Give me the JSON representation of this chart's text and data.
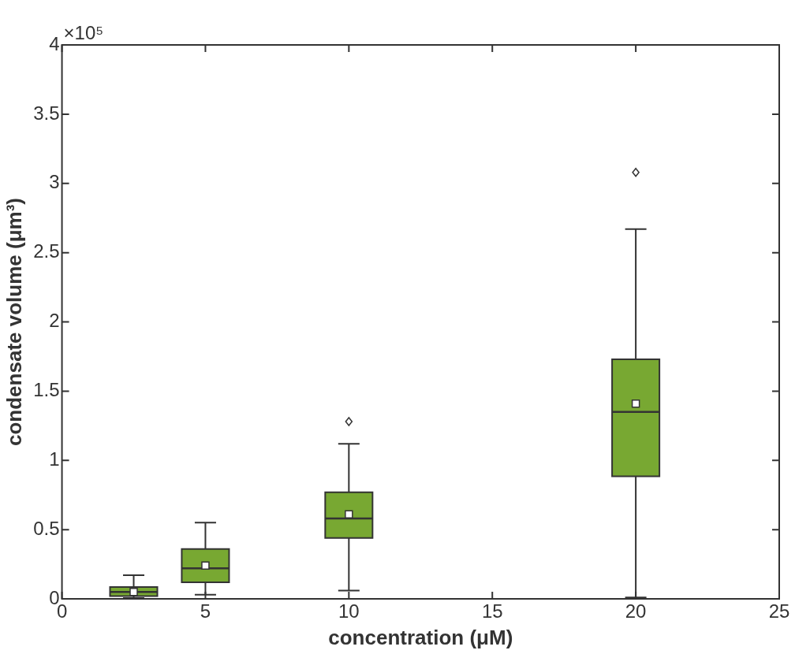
{
  "chart_data": {
    "type": "box",
    "xlabel": "concentration (μM)",
    "ylabel": "condensate volume (μm³)",
    "annotations": [
      "×10⁵"
    ],
    "x": [
      2.5,
      5,
      10,
      20
    ],
    "color": "#78a832",
    "boxes": [
      {
        "low": 0.005,
        "q1": 0.02,
        "median": 0.05,
        "q3": 0.085,
        "high": 0.17,
        "mean": 0.05
      },
      {
        "low": 0.03,
        "q1": 0.12,
        "median": 0.22,
        "q3": 0.36,
        "high": 0.55,
        "mean": 0.24
      },
      {
        "low": 0.06,
        "q1": 0.44,
        "median": 0.58,
        "q3": 0.77,
        "high": 1.12,
        "mean": 0.61,
        "outliers": [
          1.28
        ]
      },
      {
        "low": 0.01,
        "q1": 0.885,
        "median": 1.35,
        "q3": 1.73,
        "high": 2.67,
        "mean": 1.41,
        "outliers": [
          3.08
        ]
      }
    ],
    "xlim": [
      0,
      25
    ],
    "xticks": [
      0,
      5,
      10,
      15,
      20,
      25
    ],
    "ylim": [
      0,
      4
    ],
    "yticks": [
      0,
      0.5,
      1,
      1.5,
      2,
      2.5,
      3,
      3.5,
      4
    ],
    "grid": false,
    "legend": false
  }
}
